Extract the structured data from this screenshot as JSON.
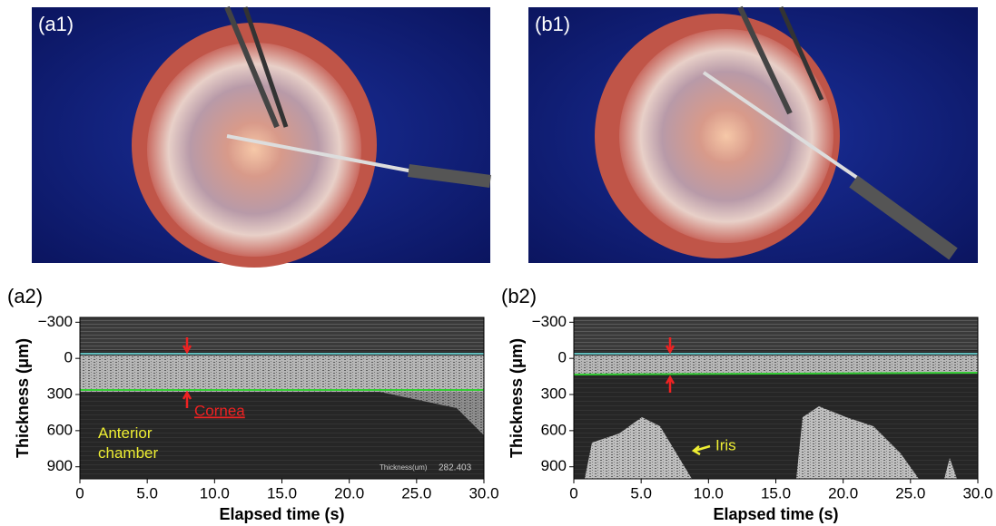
{
  "panels": [
    {
      "label": "(a1)"
    },
    {
      "label": "(b1)"
    }
  ],
  "plots": [
    {
      "label": "(a2)",
      "xlabel": "Elapsed time (s)",
      "ylabel": "Thickness (μm)",
      "xlim": [
        0,
        30
      ],
      "ylim": [
        -340,
        1000
      ],
      "xticks": [
        0,
        {
          "value": 5,
          "label": "5.0"
        },
        {
          "value": 10,
          "label": "10.0"
        },
        {
          "value": 15,
          "label": "15.0"
        },
        {
          "value": 20,
          "label": "20.0"
        },
        {
          "value": 25,
          "label": "25.0"
        },
        {
          "value": 30,
          "label": "30.0"
        }
      ],
      "yticks": [
        {
          "value": -300,
          "label": "−300"
        },
        0,
        300,
        600,
        900
      ],
      "annotations": [
        "Cornea",
        "Anterior chamber",
        "Thickness(um)",
        "282.403"
      ]
    },
    {
      "label": "(b2)",
      "xlabel": "Elapsed time (s)",
      "ylabel": "Thickness (μm)",
      "xlim": [
        0,
        30
      ],
      "ylim": [
        -340,
        1000
      ],
      "xticks": [
        0,
        {
          "value": 5,
          "label": "5.0"
        },
        {
          "value": 10,
          "label": "10.0"
        },
        {
          "value": 15,
          "label": "15.0"
        },
        {
          "value": 20,
          "label": "20.0"
        },
        {
          "value": 25,
          "label": "25.0"
        },
        {
          "value": 30,
          "label": "30.0"
        }
      ],
      "yticks": [
        {
          "value": -300,
          "label": "−300"
        },
        0,
        300,
        600,
        900
      ],
      "annotations": [
        "Iris"
      ]
    }
  ]
}
